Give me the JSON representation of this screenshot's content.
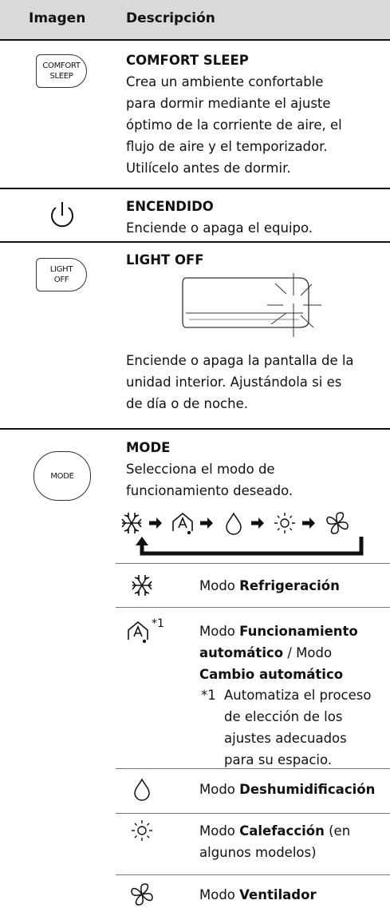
{
  "header": {
    "image": "Imagen",
    "description": "Descripción"
  },
  "rows": [
    {
      "button": [
        "COMFORT",
        "SLEEP"
      ],
      "title": "COMFORT SLEEP",
      "text": [
        "Crea un ambiente confortable",
        "para dormir mediante el ajuste",
        "óptimo de la corriente de aire, el",
        "flujo de aire y el temporizador.",
        "Utilícelo antes de dormir."
      ]
    },
    {
      "title": "ENCENDIDO",
      "text": [
        "Enciende o apaga el equipo."
      ]
    },
    {
      "button": [
        "LIGHT",
        "OFF"
      ],
      "title": "LIGHT OFF",
      "text": [
        "Enciende o apaga la pantalla de la",
        "unidad interior. Ajustándola si es",
        "de día o de noche."
      ]
    },
    {
      "button": [
        "MODE"
      ],
      "title": "MODE",
      "text": [
        "Selecciona el modo de",
        "funcionamiento deseado."
      ],
      "modes": [
        {
          "prefix": "Modo",
          "name": "Refrigeración"
        },
        {
          "icon_note": "*1",
          "prefix": "Modo",
          "name": "Funcionamiento automático",
          "joiner": "/ Modo",
          "name2": "Cambio automático",
          "note_label": "*1",
          "note": [
            "Automatiza el proceso",
            "de elección de los",
            "ajustes adecuados",
            "para su espacio."
          ]
        },
        {
          "prefix": "Modo",
          "name": "Deshumidificación"
        },
        {
          "prefix": "Modo",
          "name": "Calefacción",
          "suffix": "(en algunos modelos)"
        },
        {
          "prefix": "Modo",
          "name": "Ventilador"
        }
      ]
    }
  ]
}
